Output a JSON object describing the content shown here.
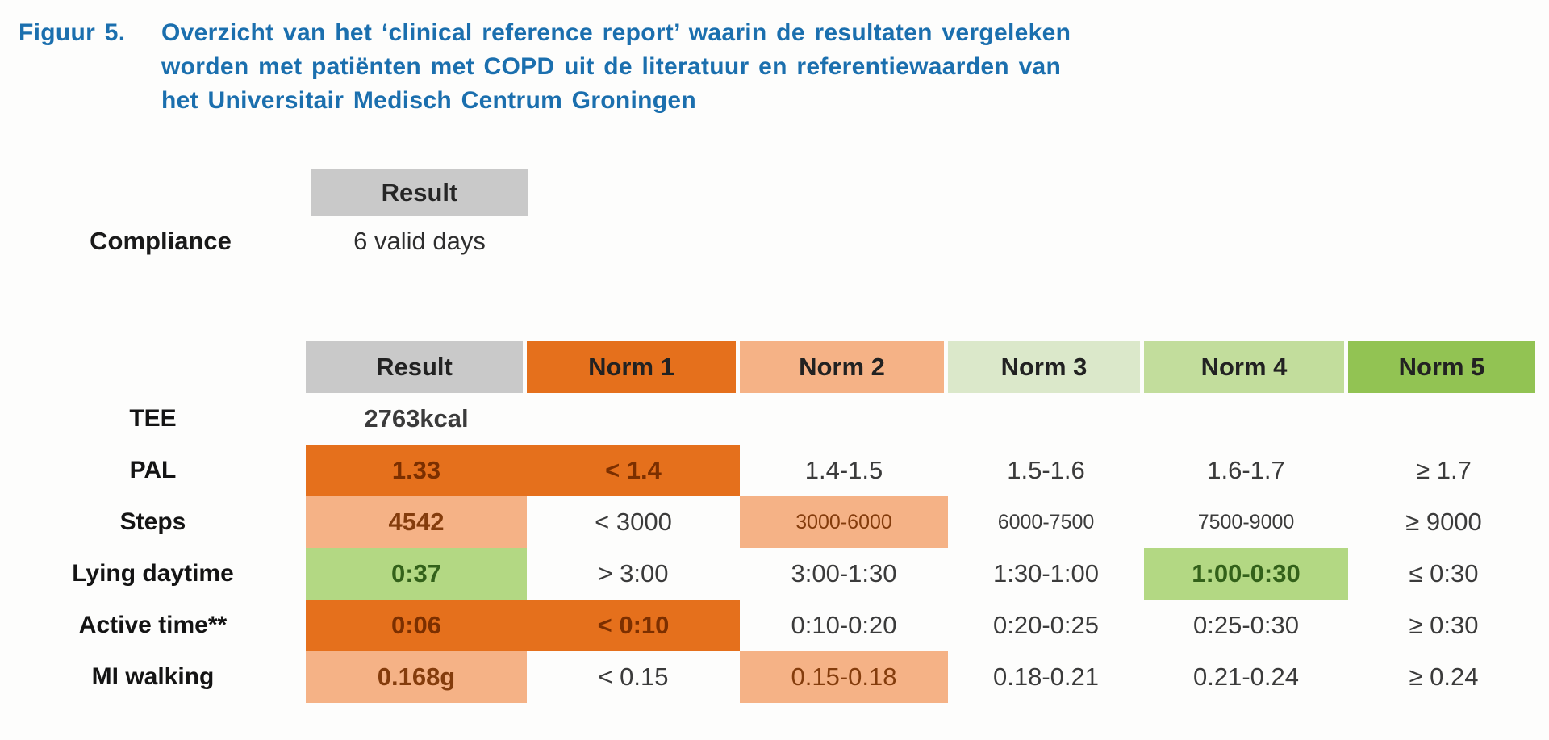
{
  "figure": {
    "label": "Figuur 5.",
    "title_lines": [
      "Overzicht van het ‘clinical reference report’ waarin de resultaten vergeleken",
      "worden met patiënten met COPD uit de literatuur en referentiewaarden van",
      "het Universitair Medisch Centrum Groningen"
    ]
  },
  "compliance": {
    "header": "Result",
    "label": "Compliance",
    "value": "6 valid days"
  },
  "table": {
    "headers": [
      "Result",
      "Norm 1",
      "Norm 2",
      "Norm 3",
      "Norm 4",
      "Norm 5"
    ],
    "rows": [
      {
        "label": "TEE",
        "result": "2763kcal",
        "norm1": "",
        "norm2": "",
        "norm3": "",
        "norm4": "",
        "norm5": ""
      },
      {
        "label": "PAL",
        "result": "1.33",
        "norm1": "< 1.4",
        "norm2": "1.4-1.5",
        "norm3": "1.5-1.6",
        "norm4": "1.6-1.7",
        "norm5": "≥ 1.7"
      },
      {
        "label": "Steps",
        "result": "4542",
        "norm1": "< 3000",
        "norm2": "3000-6000",
        "norm3": "6000-7500",
        "norm4": "7500-9000",
        "norm5": "≥ 9000"
      },
      {
        "label": "Lying daytime",
        "result": "0:37",
        "norm1": "> 3:00",
        "norm2": "3:00-1:30",
        "norm3": "1:30-1:00",
        "norm4": "1:00-0:30",
        "norm5": "≤ 0:30"
      },
      {
        "label": "Active time**",
        "result": "0:06",
        "norm1": "< 0:10",
        "norm2": "0:10-0:20",
        "norm3": "0:20-0:25",
        "norm4": "0:25-0:30",
        "norm5": "≥ 0:30"
      },
      {
        "label": "MI walking",
        "result": "0.168g",
        "norm1": "< 0.15",
        "norm2": "0.15-0.18",
        "norm3": "0.18-0.21",
        "norm4": "0.21-0.24",
        "norm5": "≥ 0.24"
      }
    ]
  },
  "colors": {
    "title_blue": "#1b6fae",
    "header_gray": "#c9c9c9",
    "dark_orange": "#e5701c",
    "dark_orange_text": "#7b2f00",
    "light_orange": "#f5b286",
    "light_orange_text": "#843c0c",
    "pale_green": "#dbe8ca",
    "light_green": "#c2dd9c",
    "green": "#92c353",
    "row_green_highlight": "#b3d883",
    "green_text": "#33611a"
  }
}
